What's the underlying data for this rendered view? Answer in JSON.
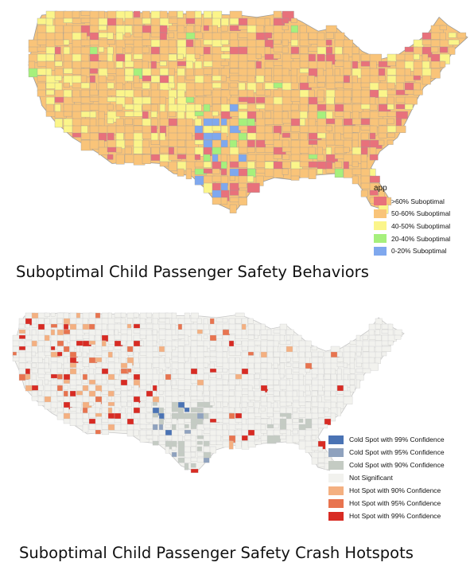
{
  "map1": {
    "title": "Suboptimal Child Passenger Safety Behaviors",
    "legend_title": "app",
    "legend": [
      {
        "label": ">60% Suboptimal",
        "color": "#e8717b"
      },
      {
        "label": "50-60% Suboptimal",
        "color": "#f9c479"
      },
      {
        "label": "40-50% Suboptimal",
        "color": "#fbf58a"
      },
      {
        "label": "20-40% Suboptimal",
        "color": "#a6f07c"
      },
      {
        "label": "0-20% Suboptimal",
        "color": "#7fa8ee"
      }
    ]
  },
  "map2": {
    "title": "Suboptimal Child Passenger Safety Crash Hotspots",
    "legend": [
      {
        "label": "Cold Spot with 99% Confidence",
        "color": "#4a73b4"
      },
      {
        "label": "Cold Spot with 95% Confidence",
        "color": "#8fa2be"
      },
      {
        "label": "Cold Spot with 90% Confidence",
        "color": "#c4cbc3"
      },
      {
        "label": "Not Significant",
        "color": "#f2f2ee"
      },
      {
        "label": "Hot Spot with 90% Confidence",
        "color": "#f4b081"
      },
      {
        "label": "Hot Spot with 95% Confidence",
        "color": "#e8744f"
      },
      {
        "label": "Hot Spot with 99% Confidence",
        "color": "#d82b23"
      }
    ]
  }
}
